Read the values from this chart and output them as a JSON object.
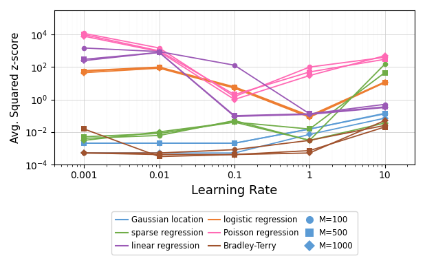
{
  "lr": [
    0.001,
    0.01,
    0.1,
    1.0,
    10.0
  ],
  "series": {
    "gaussian": {
      "color": "#5b9bd5",
      "label": "Gaussian location",
      "M100": [
        0.002,
        0.002,
        0.002,
        0.015,
        0.13
      ],
      "M500": [
        0.002,
        0.002,
        0.002,
        0.015,
        0.14
      ],
      "M1000": [
        0.0005,
        0.0005,
        0.0005,
        0.007,
        0.07
      ]
    },
    "logistic": {
      "color": "#ed7d31",
      "label": "logistic regression",
      "M100": [
        60.0,
        100.0,
        6.0,
        0.1,
        12.0
      ],
      "M500": [
        55.0,
        95.0,
        5.5,
        0.09,
        11.5
      ],
      "M1000": [
        45.0,
        85.0,
        5.0,
        0.08,
        11.0
      ]
    },
    "sparse": {
      "color": "#70ad47",
      "label": "sparse regression",
      "M100": [
        0.004,
        0.006,
        0.05,
        0.003,
        150.0
      ],
      "M500": [
        0.005,
        0.008,
        0.04,
        0.015,
        45.0
      ],
      "M1000": [
        0.003,
        0.01,
        0.04,
        0.003,
        0.035
      ]
    },
    "poisson": {
      "color": "#ff69b4",
      "label": "Poisson regression",
      "M100": [
        12000.0,
        1500.0,
        1.5,
        100.0,
        400.0
      ],
      "M500": [
        10000.0,
        1000.0,
        2.0,
        50.0,
        300.0
      ],
      "M1000": [
        8000.0,
        900.0,
        1.0,
        30.0,
        500.0
      ]
    },
    "linear": {
      "color": "#9b59b6",
      "label": "linear regression",
      "M100": [
        1500.0,
        900.0,
        130.0,
        0.13,
        0.5
      ],
      "M500": [
        300.0,
        800.0,
        0.1,
        0.13,
        0.35
      ],
      "M1000": [
        250.0,
        800.0,
        0.09,
        0.12,
        0.32
      ]
    },
    "bradleyterry": {
      "color": "#a0522d",
      "label": "Bradley-Terry",
      "M100": [
        0.0005,
        0.0005,
        0.0008,
        0.003,
        0.025
      ],
      "M500": [
        0.015,
        0.0003,
        0.0004,
        0.0007,
        0.02
      ],
      "M1000": [
        0.0005,
        0.0004,
        0.0004,
        0.0005,
        0.05
      ]
    }
  },
  "ylabel": "Avg. Squared z-score",
  "xlabel": "Learning Rate",
  "legend_row1_labels": [
    "Gaussian location",
    "sparse regression",
    "linear regression"
  ],
  "legend_row1_colors": [
    "#5b9bd5",
    "#70ad47",
    "#9b59b6"
  ],
  "legend_row2_labels": [
    "logistic regression",
    "Poisson regression",
    "Bradley-Terry"
  ],
  "legend_row2_colors": [
    "#ed7d31",
    "#ff69b4",
    "#a0522d"
  ],
  "legend_marker_labels": [
    "M=100",
    "M=500",
    "M=1000"
  ],
  "legend_marker_color": "#5b9bd5"
}
